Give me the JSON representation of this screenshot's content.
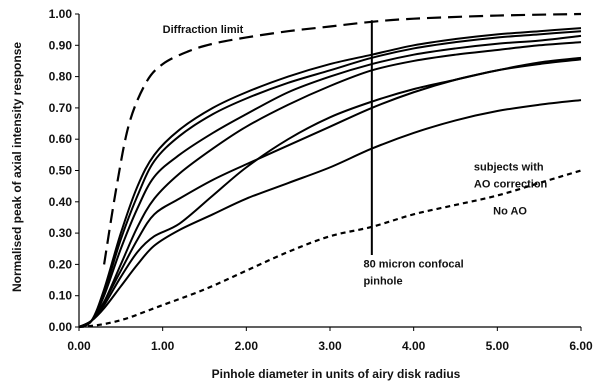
{
  "chart_data": {
    "type": "line",
    "xlabel": "Pinhole diameter in units of airy disk radius",
    "ylabel": "Normalised peak of axial intensity response",
    "xlim": [
      0,
      6
    ],
    "ylim": [
      0,
      1
    ],
    "x_ticks": [
      "0.00",
      "1.00",
      "2.00",
      "3.00",
      "4.00",
      "5.00",
      "6.00"
    ],
    "y_ticks": [
      "0.00",
      "0.10",
      "0.20",
      "0.30",
      "0.40",
      "0.50",
      "0.60",
      "0.70",
      "0.80",
      "0.90",
      "1.00"
    ],
    "grid": false,
    "legend": "none",
    "series": [
      {
        "style": "dashed",
        "color": "#000000",
        "x": [
          0.3,
          0.45,
          0.6,
          0.8,
          1.0,
          1.3,
          1.6,
          2.0,
          2.5,
          3.0,
          3.5,
          4.0,
          5.0,
          6.0
        ],
        "y": [
          0.2,
          0.45,
          0.65,
          0.78,
          0.84,
          0.88,
          0.905,
          0.925,
          0.945,
          0.96,
          0.975,
          0.985,
          0.995,
          1.0
        ]
      },
      {
        "style": "dotted",
        "color": "#000000",
        "x": [
          0.0,
          0.2,
          0.4,
          0.6,
          0.8,
          1.0,
          1.5,
          2.0,
          2.5,
          3.0,
          3.5,
          4.0,
          4.5,
          5.0,
          5.5,
          6.0
        ],
        "y": [
          0.0,
          0.005,
          0.015,
          0.03,
          0.05,
          0.07,
          0.12,
          0.18,
          0.24,
          0.29,
          0.32,
          0.36,
          0.39,
          0.42,
          0.46,
          0.5
        ]
      },
      {
        "style": "solid",
        "color": "#000000",
        "x": [
          0.0,
          0.15,
          0.3,
          0.5,
          0.7,
          0.9,
          1.2,
          1.6,
          2.0,
          2.5,
          3.0,
          3.5,
          4.0,
          4.5,
          5.0,
          5.5,
          6.0
        ],
        "y": [
          0.0,
          0.02,
          0.12,
          0.3,
          0.45,
          0.55,
          0.63,
          0.7,
          0.75,
          0.8,
          0.84,
          0.87,
          0.9,
          0.92,
          0.935,
          0.945,
          0.955
        ]
      },
      {
        "style": "solid",
        "color": "#000000",
        "x": [
          0.0,
          0.15,
          0.3,
          0.5,
          0.7,
          0.9,
          1.2,
          1.6,
          2.0,
          2.5,
          3.0,
          3.5,
          4.0,
          4.5,
          5.0,
          5.5,
          6.0
        ],
        "y": [
          0.0,
          0.02,
          0.11,
          0.28,
          0.42,
          0.53,
          0.61,
          0.68,
          0.73,
          0.78,
          0.82,
          0.86,
          0.89,
          0.91,
          0.925,
          0.935,
          0.945
        ]
      },
      {
        "style": "solid",
        "color": "#000000",
        "x": [
          0.0,
          0.15,
          0.3,
          0.5,
          0.7,
          0.9,
          1.2,
          1.6,
          2.0,
          2.5,
          3.0,
          3.5,
          4.0,
          4.5,
          5.0,
          5.5,
          6.0
        ],
        "y": [
          0.0,
          0.02,
          0.1,
          0.25,
          0.38,
          0.48,
          0.55,
          0.62,
          0.68,
          0.75,
          0.8,
          0.84,
          0.87,
          0.89,
          0.905,
          0.915,
          0.93
        ]
      },
      {
        "style": "solid",
        "color": "#000000",
        "x": [
          0.0,
          0.15,
          0.3,
          0.5,
          0.7,
          0.9,
          1.2,
          1.6,
          2.0,
          2.5,
          3.0,
          3.5,
          4.0,
          4.5,
          5.0,
          5.5,
          6.0
        ],
        "y": [
          0.0,
          0.02,
          0.08,
          0.2,
          0.32,
          0.41,
          0.49,
          0.57,
          0.64,
          0.71,
          0.77,
          0.82,
          0.85,
          0.87,
          0.885,
          0.9,
          0.91
        ]
      },
      {
        "style": "solid",
        "color": "#000000",
        "x": [
          0.0,
          0.15,
          0.3,
          0.5,
          0.7,
          0.9,
          1.2,
          1.6,
          2.0,
          2.5,
          3.0,
          3.5,
          4.0,
          4.5,
          5.0,
          5.5,
          6.0
        ],
        "y": [
          0.0,
          0.02,
          0.08,
          0.18,
          0.28,
          0.36,
          0.41,
          0.47,
          0.52,
          0.58,
          0.64,
          0.7,
          0.75,
          0.79,
          0.82,
          0.845,
          0.86
        ]
      },
      {
        "style": "solid",
        "color": "#000000",
        "x": [
          0.0,
          0.15,
          0.3,
          0.5,
          0.7,
          0.9,
          1.2,
          1.6,
          2.0,
          2.5,
          3.0,
          3.5,
          4.0,
          4.5,
          5.0,
          5.5,
          6.0
        ],
        "y": [
          0.0,
          0.02,
          0.07,
          0.16,
          0.24,
          0.29,
          0.33,
          0.42,
          0.51,
          0.6,
          0.67,
          0.72,
          0.76,
          0.79,
          0.82,
          0.84,
          0.855
        ]
      },
      {
        "style": "solid",
        "color": "#000000",
        "x": [
          0.0,
          0.15,
          0.3,
          0.5,
          0.7,
          0.9,
          1.2,
          1.6,
          2.0,
          2.5,
          3.0,
          3.5,
          4.0,
          4.5,
          5.0,
          5.5,
          6.0
        ],
        "y": [
          0.0,
          0.02,
          0.06,
          0.13,
          0.2,
          0.26,
          0.31,
          0.36,
          0.41,
          0.46,
          0.51,
          0.57,
          0.62,
          0.66,
          0.69,
          0.71,
          0.725
        ]
      }
    ],
    "vertical_line": {
      "x": 3.5,
      "y_from": 0.23,
      "y_to": 0.98
    },
    "annotations": [
      {
        "text": "Diffraction limit",
        "x": 1.0,
        "y": 0.94
      },
      {
        "text": "subjects with",
        "x": 4.72,
        "y": 0.5
      },
      {
        "text": "AO correction",
        "x": 4.72,
        "y": 0.445
      },
      {
        "text": "No AO",
        "x": 4.95,
        "y": 0.36
      },
      {
        "text": "80 micron confocal",
        "x": 3.4,
        "y": 0.19
      },
      {
        "text": "pinhole",
        "x": 3.4,
        "y": 0.135
      }
    ]
  }
}
